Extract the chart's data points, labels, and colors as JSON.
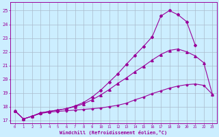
{
  "bg_color": "#cceeff",
  "grid_color": "#aabbcc",
  "line_color": "#990099",
  "xlabel": "Windchill (Refroidissement éolien,°C)",
  "xlim": [
    -0.5,
    23.5
  ],
  "ylim": [
    16.8,
    25.6
  ],
  "yticks": [
    17,
    18,
    19,
    20,
    21,
    22,
    23,
    24,
    25
  ],
  "xticks": [
    0,
    1,
    2,
    3,
    4,
    5,
    6,
    7,
    8,
    9,
    10,
    11,
    12,
    13,
    14,
    15,
    16,
    17,
    18,
    19,
    20,
    21,
    22,
    23
  ],
  "line1_x": [
    0,
    1,
    2,
    3,
    4,
    5,
    6,
    7,
    8,
    9,
    10,
    11,
    12,
    13,
    14,
    15,
    16,
    17,
    18,
    19,
    20,
    21,
    22,
    23
  ],
  "line1_y": [
    17.7,
    17.1,
    17.3,
    17.5,
    17.6,
    17.65,
    17.7,
    17.75,
    17.8,
    17.85,
    17.9,
    18.0,
    18.1,
    18.25,
    18.5,
    18.7,
    18.95,
    19.15,
    19.35,
    19.5,
    19.6,
    19.65,
    19.55,
    18.9
  ],
  "line2_x": [
    0,
    1,
    2,
    3,
    4,
    5,
    6,
    7,
    8,
    9,
    10,
    11,
    12,
    13,
    14,
    15,
    16,
    17,
    18,
    19,
    20,
    21,
    22,
    23
  ],
  "line2_y": [
    17.7,
    17.1,
    17.3,
    17.55,
    17.65,
    17.75,
    17.85,
    18.0,
    18.2,
    18.5,
    18.85,
    19.25,
    19.7,
    20.1,
    20.55,
    20.95,
    21.4,
    21.8,
    22.1,
    22.2,
    22.0,
    21.7,
    21.2,
    18.9
  ],
  "line3_x": [
    0,
    1,
    2,
    3,
    4,
    5,
    6,
    7,
    8,
    9,
    10,
    11,
    12,
    13,
    14,
    15,
    16,
    17,
    18,
    19,
    20,
    21
  ],
  "line3_y": [
    17.7,
    17.1,
    17.3,
    17.55,
    17.65,
    17.75,
    17.85,
    18.05,
    18.3,
    18.7,
    19.2,
    19.8,
    20.4,
    21.1,
    21.75,
    22.4,
    23.1,
    24.6,
    25.0,
    24.7,
    24.2,
    22.5
  ],
  "marker1": "D",
  "marker2": "^",
  "marker3": "D",
  "markersize1": 1.5,
  "markersize2": 2.5,
  "markersize3": 2.0,
  "linewidth": 0.8
}
